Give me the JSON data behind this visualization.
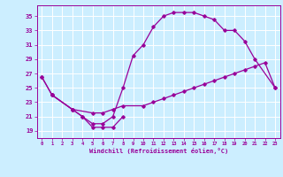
{
  "title": "",
  "xlabel": "Windchill (Refroidissement éolien,°C)",
  "bg_color": "#cceeff",
  "line_color": "#990099",
  "grid_color": "#ffffff",
  "xlim": [
    -0.5,
    23.5
  ],
  "ylim": [
    18.0,
    36.5
  ],
  "xticks": [
    0,
    1,
    2,
    3,
    4,
    5,
    6,
    7,
    8,
    9,
    10,
    11,
    12,
    13,
    14,
    15,
    16,
    17,
    18,
    19,
    20,
    21,
    22,
    23
  ],
  "yticks": [
    19,
    21,
    23,
    25,
    27,
    29,
    31,
    33,
    35
  ],
  "line1_x": [
    0,
    1,
    3,
    4,
    5,
    6,
    7,
    8
  ],
  "line1_y": [
    26.5,
    24.0,
    22.0,
    21.0,
    19.5,
    19.5,
    19.5,
    21.0
  ],
  "line2_x": [
    0,
    1,
    3,
    4,
    5,
    6,
    7,
    8,
    9,
    10,
    11,
    12,
    13,
    14,
    15,
    16,
    17,
    18,
    19,
    20,
    21,
    23
  ],
  "line2_y": [
    26.5,
    24.0,
    22.0,
    21.0,
    20.0,
    20.0,
    21.0,
    25.0,
    29.5,
    31.0,
    33.5,
    35.0,
    35.5,
    35.5,
    35.5,
    35.0,
    34.5,
    33.0,
    33.0,
    31.5,
    29.0,
    25.0
  ],
  "line3_x": [
    1,
    3,
    5,
    6,
    7,
    8,
    10,
    11,
    12,
    13,
    14,
    15,
    16,
    17,
    18,
    19,
    20,
    21,
    22,
    23
  ],
  "line3_y": [
    24.0,
    22.0,
    21.5,
    21.5,
    22.0,
    22.5,
    22.5,
    23.0,
    23.5,
    24.0,
    24.5,
    25.0,
    25.5,
    26.0,
    26.5,
    27.0,
    27.5,
    28.0,
    28.5,
    25.0
  ]
}
